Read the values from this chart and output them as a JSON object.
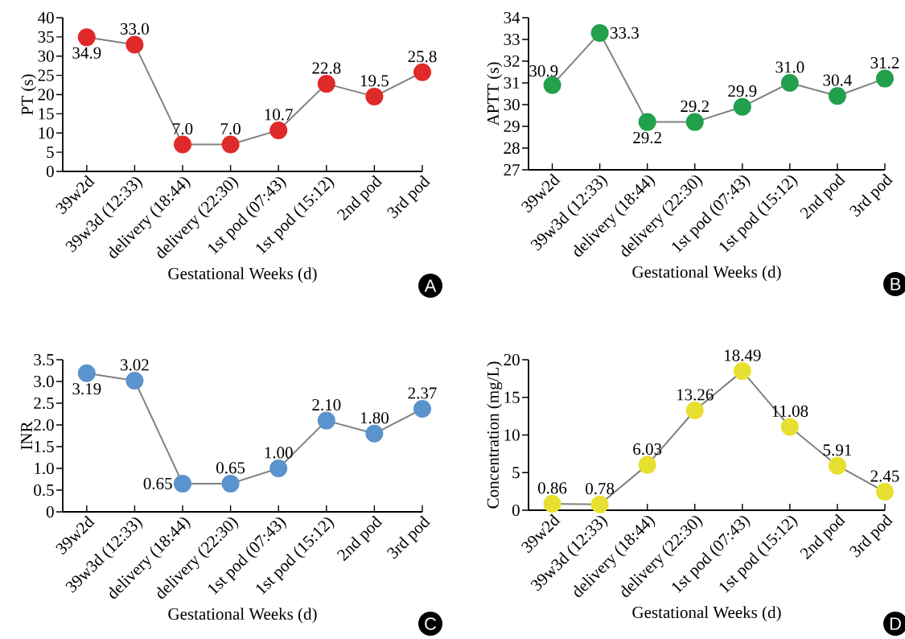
{
  "chart_data": [
    {
      "type": "line",
      "xlabel": "Gestational Weeks (d)",
      "ylabel": "PT (s)",
      "categories": [
        "39w2d",
        "39w3d (12:33)",
        "delivery (18:44)",
        "delivery (22:30)",
        "1st pod (07:43)",
        "1st pod (15:12)",
        "2nd pod",
        "3rd pod"
      ],
      "values": [
        34.9,
        33.0,
        7.0,
        7.0,
        10.7,
        22.8,
        19.5,
        25.8
      ],
      "value_labels": [
        "34.9",
        "33.0",
        "7.0",
        "7.0",
        "10.7",
        "22.8",
        "19.5",
        "25.8"
      ],
      "color": "#e02a2a",
      "marker": "circle",
      "ylim": [
        0,
        40
      ],
      "yticks": [
        0,
        5,
        10,
        15,
        20,
        25,
        30,
        35,
        40
      ],
      "annotations": [
        "A"
      ]
    },
    {
      "type": "line",
      "xlabel": "Gestational Weeks (d)",
      "ylabel": "APTT (s)",
      "categories": [
        "39w2d",
        "39w3d (12:33)",
        "delivery (18:44)",
        "delivery (22:30)",
        "1st pod (07:43)",
        "1st pod (15:12)",
        "2nd pod",
        "3rd pod"
      ],
      "values": [
        30.9,
        33.3,
        29.2,
        29.2,
        29.9,
        31.0,
        30.4,
        31.2
      ],
      "value_labels": [
        "30.9",
        "33.3",
        "29.2",
        "29.2",
        "29.9",
        "31.0",
        "30.4",
        "31.2"
      ],
      "color": "#22a04b",
      "marker": "circle",
      "ylim": [
        27,
        34
      ],
      "yticks": [
        27,
        28,
        29,
        30,
        31,
        32,
        33,
        34
      ],
      "annotations": [
        "B"
      ]
    },
    {
      "type": "line",
      "xlabel": "Gestational Weeks (d)",
      "ylabel": "INR",
      "categories": [
        "39w2d",
        "39w3d (12:33)",
        "delivery (18:44)",
        "delivery (22:30)",
        "1st pod (07:43)",
        "1st pod (15:12)",
        "2nd pod",
        "3rd pod"
      ],
      "values": [
        3.19,
        3.02,
        0.65,
        0.65,
        1.0,
        2.1,
        1.8,
        2.37
      ],
      "value_labels": [
        "3.19",
        "3.02",
        "0.65",
        "0.65",
        "1.00",
        "2.10",
        "1.80",
        "2.37"
      ],
      "color": "#5b93cc",
      "marker": "circle",
      "ylim": [
        0,
        3.5
      ],
      "yticks": [
        0,
        0.5,
        {
          "value": 1,
          "label": "1.0"
        },
        1.5,
        {
          "value": 2,
          "label": "2.0"
        },
        2.5,
        {
          "value": 3,
          "label": "3.0"
        },
        3.5
      ],
      "annotations": [
        "C"
      ]
    },
    {
      "type": "line",
      "xlabel": "Gestational Weeks (d)",
      "ylabel": "Concentration (mg/L)",
      "categories": [
        "39w2d",
        "39w3d (12:33)",
        "delivery (18:44)",
        "delivery (22:30)",
        "1st pod (07:43)",
        "1st pod (15:12)",
        "2nd pod",
        "3rd pod"
      ],
      "values": [
        0.86,
        0.78,
        6.03,
        13.26,
        18.49,
        11.08,
        5.91,
        2.45
      ],
      "value_labels": [
        "0.86",
        "0.78",
        "6.03",
        "13.26",
        "18.49",
        "11.08",
        "5.91",
        "2.45"
      ],
      "color": "#e8e030",
      "marker": "circle",
      "ylim": [
        0,
        20
      ],
      "yticks": [
        0,
        5,
        10,
        15,
        20
      ],
      "annotations": [
        "D"
      ]
    }
  ]
}
